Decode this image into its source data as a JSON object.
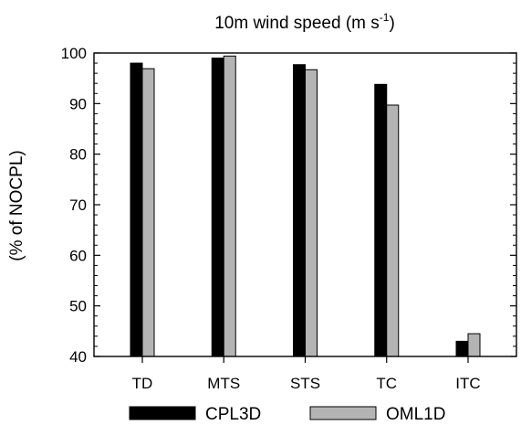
{
  "chart_data": {
    "type": "bar",
    "title": {
      "main": "10m wind speed (m s",
      "superscript": "-1",
      "suffix": ")"
    },
    "xlabel": "",
    "ylabel": "(% of NOCPL)",
    "categories": [
      "TD",
      "MTS",
      "STS",
      "TC",
      "ITC"
    ],
    "ylim": [
      40,
      100
    ],
    "yticks": [
      40,
      50,
      60,
      70,
      80,
      90,
      100
    ],
    "grid": false,
    "legend_position": "bottom",
    "series": [
      {
        "name": "CPL3D",
        "color": "#000000",
        "values": [
          98.0,
          99.0,
          97.7,
          93.8,
          43.0
        ]
      },
      {
        "name": "OML1D",
        "color": "#b4b4b4",
        "values": [
          96.9,
          99.4,
          96.7,
          89.7,
          44.5
        ]
      }
    ]
  }
}
